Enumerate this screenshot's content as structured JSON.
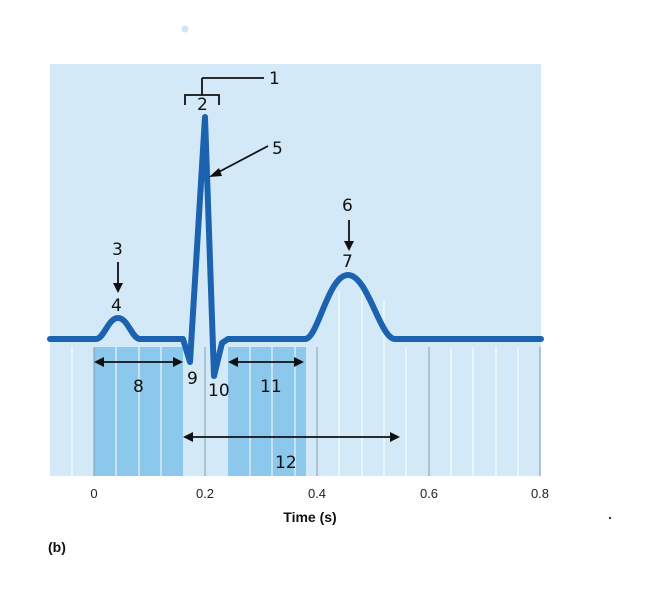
{
  "panel_label": "(b)",
  "axis": {
    "title": "Time (s)",
    "ticks": [
      "0",
      "0.2",
      "0.4",
      "0.6",
      "0.8"
    ],
    "range": [
      0,
      0.8
    ]
  },
  "labels": {
    "l1": "1",
    "l2": "2",
    "l3": "3",
    "l4": "4",
    "l5": "5",
    "l6": "6",
    "l7": "7",
    "l8": "8",
    "l9": "9",
    "l10": "10",
    "l11": "11",
    "l12": "12"
  },
  "colors": {
    "background": "#d4e9f7",
    "highlight": "#8cc7ec",
    "trace": "#1b62b0",
    "gridline": "#ffffff",
    "ink": "#111111"
  }
}
